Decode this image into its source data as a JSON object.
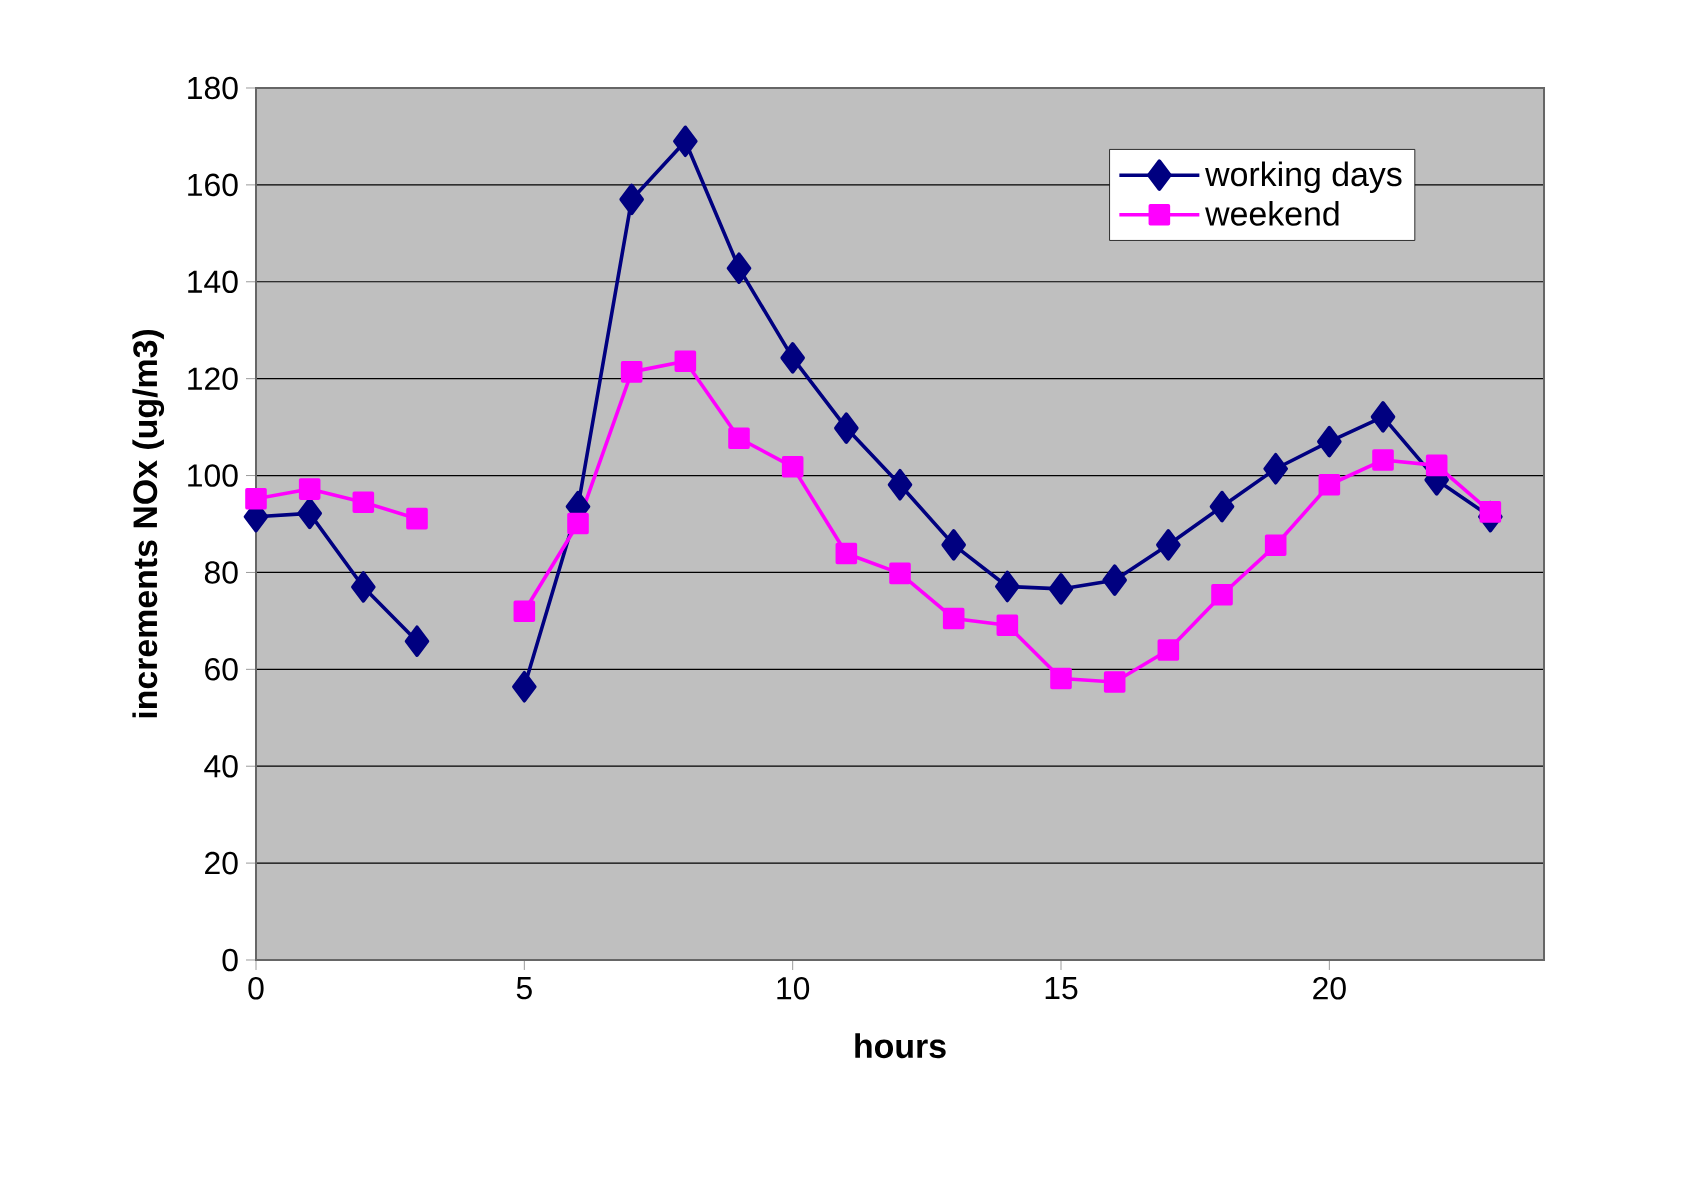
{
  "chart_data": {
    "type": "line",
    "xlabel": "hours",
    "ylabel": "increments NOx (ug/m3)",
    "x": [
      0,
      1,
      2,
      3,
      4,
      5,
      6,
      7,
      8,
      9,
      10,
      11,
      12,
      13,
      14,
      15,
      16,
      17,
      18,
      19,
      20,
      21,
      22,
      23
    ],
    "series": [
      {
        "name": "working days",
        "color": "#000080",
        "marker": "diamond",
        "values": [
          91.5,
          92.2,
          77,
          65.8,
          null,
          56.4,
          93.6,
          157,
          169,
          142.8,
          124.3,
          109.8,
          98.1,
          85.7,
          77.1,
          76.6,
          78.4,
          85.7,
          93.6,
          101.4,
          107,
          112.1,
          99.1,
          91.5
        ]
      },
      {
        "name": "weekend",
        "color": "#ff00ff",
        "marker": "square",
        "values": [
          95.2,
          97.2,
          94.5,
          91.1,
          null,
          72,
          90.1,
          121.4,
          123.6,
          107.7,
          101.8,
          83.9,
          79.8,
          70.5,
          69.1,
          58.1,
          57.4,
          64,
          75.4,
          85.6,
          98.1,
          103.2,
          102.1,
          92.5
        ]
      }
    ],
    "xlim": [
      0,
      24
    ],
    "xticks": [
      0,
      5,
      10,
      15,
      20
    ],
    "ylim": [
      0,
      180
    ],
    "yticks": [
      0,
      20,
      40,
      60,
      80,
      100,
      120,
      140,
      160,
      180
    ],
    "grid": "y",
    "legend": "top right",
    "line_style": "solid"
  }
}
